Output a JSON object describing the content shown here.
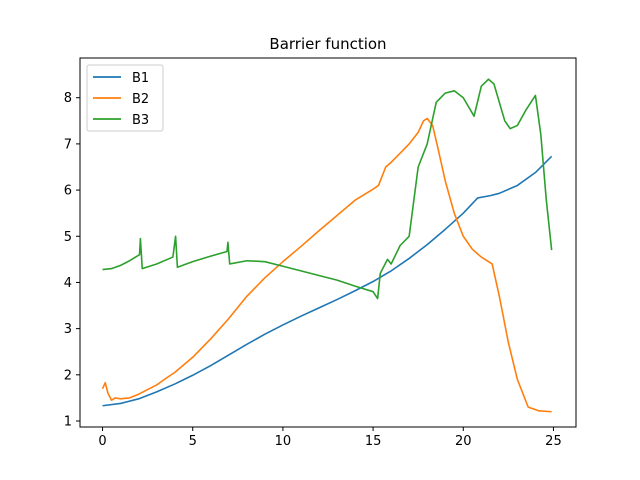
{
  "chart_data": {
    "type": "line",
    "title": "Barrier function",
    "xlabel": "",
    "ylabel": "",
    "xlim": [
      -1.25,
      26.25
    ],
    "ylim": [
      0.87,
      8.86
    ],
    "xticks": [
      0,
      5,
      10,
      15,
      20,
      25
    ],
    "yticks": [
      1,
      2,
      3,
      4,
      5,
      6,
      7,
      8
    ],
    "grid": false,
    "legend_position": "upper-left",
    "series": [
      {
        "name": "B1",
        "color": "#1f77b4",
        "points": [
          [
            0,
            1.33
          ],
          [
            1,
            1.38
          ],
          [
            2,
            1.48
          ],
          [
            3,
            1.63
          ],
          [
            4,
            1.8
          ],
          [
            5,
            1.99
          ],
          [
            6,
            2.2
          ],
          [
            7,
            2.43
          ],
          [
            8,
            2.66
          ],
          [
            9,
            2.88
          ],
          [
            10,
            3.08
          ],
          [
            11,
            3.27
          ],
          [
            12,
            3.45
          ],
          [
            13,
            3.63
          ],
          [
            14,
            3.82
          ],
          [
            15,
            4.02
          ],
          [
            16,
            4.25
          ],
          [
            17,
            4.52
          ],
          [
            18,
            4.82
          ],
          [
            19,
            5.15
          ],
          [
            20,
            5.5
          ],
          [
            20.8,
            5.83
          ],
          [
            21.5,
            5.88
          ],
          [
            22,
            5.93
          ],
          [
            23,
            6.1
          ],
          [
            24,
            6.38
          ],
          [
            24.9,
            6.73
          ]
        ]
      },
      {
        "name": "B2",
        "color": "#ff7f0e",
        "points": [
          [
            0,
            1.7
          ],
          [
            0.15,
            1.83
          ],
          [
            0.3,
            1.6
          ],
          [
            0.5,
            1.45
          ],
          [
            0.7,
            1.5
          ],
          [
            1,
            1.48
          ],
          [
            1.5,
            1.5
          ],
          [
            2,
            1.58
          ],
          [
            2.5,
            1.68
          ],
          [
            3,
            1.78
          ],
          [
            3.5,
            1.92
          ],
          [
            4,
            2.05
          ],
          [
            5,
            2.38
          ],
          [
            6,
            2.78
          ],
          [
            7,
            3.22
          ],
          [
            8,
            3.7
          ],
          [
            9,
            4.1
          ],
          [
            10,
            4.45
          ],
          [
            11,
            4.78
          ],
          [
            12,
            5.12
          ],
          [
            13,
            5.45
          ],
          [
            14,
            5.78
          ],
          [
            15,
            6.02
          ],
          [
            15.3,
            6.1
          ],
          [
            15.7,
            6.5
          ],
          [
            16,
            6.6
          ],
          [
            16.5,
            6.8
          ],
          [
            17,
            7.0
          ],
          [
            17.5,
            7.25
          ],
          [
            17.8,
            7.5
          ],
          [
            18,
            7.55
          ],
          [
            18.3,
            7.4
          ],
          [
            18.6,
            6.9
          ],
          [
            19,
            6.2
          ],
          [
            19.5,
            5.5
          ],
          [
            20,
            5.0
          ],
          [
            20.5,
            4.72
          ],
          [
            21,
            4.55
          ],
          [
            21.6,
            4.4
          ],
          [
            22,
            3.7
          ],
          [
            22.5,
            2.7
          ],
          [
            23,
            1.9
          ],
          [
            23.6,
            1.3
          ],
          [
            24.2,
            1.22
          ],
          [
            24.9,
            1.2
          ]
        ]
      },
      {
        "name": "B3",
        "color": "#2ca02c",
        "points": [
          [
            0,
            4.28
          ],
          [
            0.5,
            4.3
          ],
          [
            1,
            4.37
          ],
          [
            1.5,
            4.47
          ],
          [
            2.05,
            4.6
          ],
          [
            2.1,
            4.95
          ],
          [
            2.2,
            4.3
          ],
          [
            3,
            4.4
          ],
          [
            3.9,
            4.55
          ],
          [
            4.05,
            5.0
          ],
          [
            4.15,
            4.33
          ],
          [
            5,
            4.45
          ],
          [
            6,
            4.57
          ],
          [
            6.9,
            4.67
          ],
          [
            6.95,
            4.87
          ],
          [
            7.05,
            4.4
          ],
          [
            8,
            4.47
          ],
          [
            9,
            4.45
          ],
          [
            10,
            4.35
          ],
          [
            11,
            4.25
          ],
          [
            12,
            4.15
          ],
          [
            13,
            4.05
          ],
          [
            14,
            3.92
          ],
          [
            15,
            3.8
          ],
          [
            15.25,
            3.65
          ],
          [
            15.4,
            4.2
          ],
          [
            15.8,
            4.5
          ],
          [
            16,
            4.4
          ],
          [
            16.5,
            4.8
          ],
          [
            17,
            5.0
          ],
          [
            17.5,
            6.5
          ],
          [
            18,
            7.0
          ],
          [
            18.5,
            7.9
          ],
          [
            19,
            8.1
          ],
          [
            19.5,
            8.15
          ],
          [
            20,
            8.0
          ],
          [
            20.6,
            7.6
          ],
          [
            21,
            8.25
          ],
          [
            21.4,
            8.4
          ],
          [
            21.7,
            8.3
          ],
          [
            22.3,
            7.5
          ],
          [
            22.6,
            7.33
          ],
          [
            23,
            7.4
          ],
          [
            23.5,
            7.75
          ],
          [
            24,
            8.05
          ],
          [
            24.3,
            7.2
          ],
          [
            24.6,
            5.8
          ],
          [
            24.9,
            4.7
          ]
        ]
      }
    ]
  }
}
